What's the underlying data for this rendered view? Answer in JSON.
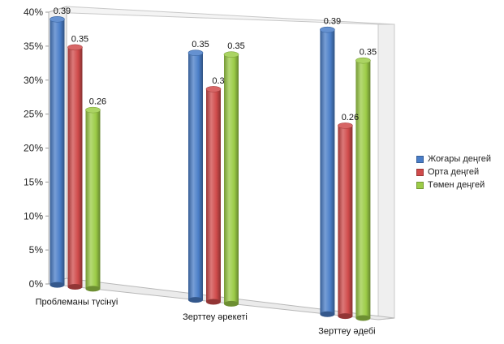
{
  "chart_data": {
    "type": "bar",
    "title": "",
    "xlabel": "",
    "ylabel": "",
    "categories": [
      "Проблеманы түсінуі",
      "Зерттеу әрекеті",
      "Зерттеу әдебі"
    ],
    "series": [
      {
        "name": "Жоғары деңгей",
        "values": [
          0.39,
          0.35,
          0.39
        ],
        "color": "#4a7ec8"
      },
      {
        "name": "Орта деңгей",
        "values": [
          0.35,
          0.3,
          0.26
        ],
        "color": "#d04b4b"
      },
      {
        "name": "Төмен деңгей",
        "values": [
          0.26,
          0.35,
          0.35
        ],
        "color": "#9ccc47"
      }
    ],
    "data_labels": [
      [
        "0.39",
        "0.35",
        "0.39"
      ],
      [
        "0.35",
        "0.3",
        "0.26"
      ],
      [
        "0.26",
        "0.35",
        "0.35"
      ]
    ],
    "y_ticks": [
      "0%",
      "5%",
      "10%",
      "15%",
      "20%",
      "25%",
      "30%",
      "35%",
      "40%"
    ],
    "ylim": [
      0,
      0.4
    ],
    "legend_position": "right",
    "grid": false
  }
}
